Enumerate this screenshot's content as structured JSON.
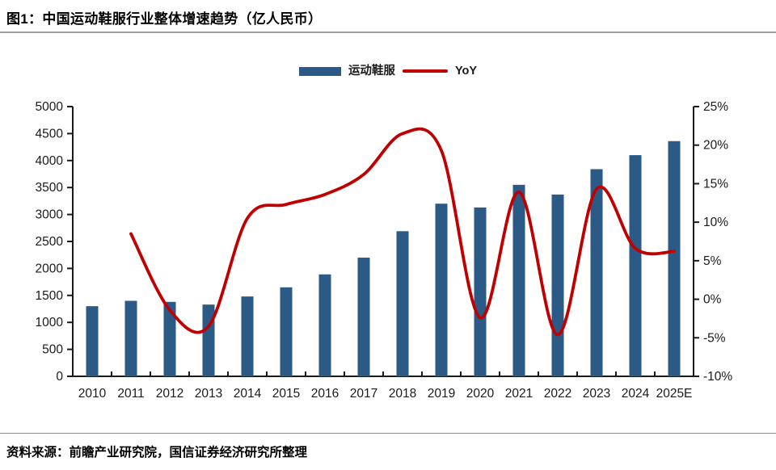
{
  "header": {
    "title": "图1：中国运动鞋服行业整体增速趋势（亿人民币）"
  },
  "legend": [
    {
      "label": "运动鞋服",
      "type": "bar",
      "color": "#2B5A87"
    },
    {
      "label": "YoY",
      "type": "line",
      "color": "#C00000"
    }
  ],
  "footer": {
    "source": "资料来源：前瞻产业研究院，国信证券经济研究所整理"
  },
  "colors": {
    "bar": "#2B5A87",
    "line": "#C00000",
    "axis": "#1a1a1a",
    "label": "#1a1a1a",
    "divider": "#9e9e9e"
  },
  "chart_data": {
    "type": "bar",
    "subtype": "bar+line-combo",
    "title": "中国运动鞋服行业整体增速趋势（亿人民币）",
    "categories": [
      "2010",
      "2011",
      "2012",
      "2013",
      "2014",
      "2015",
      "2016",
      "2017",
      "2018",
      "2019",
      "2020",
      "2021",
      "2022",
      "2023",
      "2024",
      "2025E"
    ],
    "series": [
      {
        "name": "运动鞋服",
        "type": "bar",
        "axis": "left",
        "color": "#2B5A87",
        "values": [
          1300,
          1400,
          1380,
          1330,
          1480,
          1650,
          1890,
          2200,
          2690,
          3200,
          3130,
          3550,
          3370,
          3840,
          4100,
          4360
        ]
      },
      {
        "name": "YoY",
        "type": "line",
        "axis": "right",
        "color": "#C00000",
        "unit": "%",
        "values": [
          null,
          8.5,
          -1.4,
          -3.5,
          10.5,
          12.3,
          13.6,
          16.2,
          21.5,
          19.3,
          -2.4,
          13.9,
          -4.6,
          14.3,
          6.6,
          6.2
        ]
      }
    ],
    "left_axis": {
      "min": 0,
      "max": 5000,
      "step": 500,
      "tick_labels": [
        "0",
        "500",
        "1000",
        "1500",
        "2000",
        "2500",
        "3000",
        "3500",
        "4000",
        "4500",
        "5000"
      ]
    },
    "right_axis": {
      "min": -10,
      "max": 25,
      "step": 5,
      "tick_labels": [
        "-10%",
        "-5%",
        "0%",
        "5%",
        "10%",
        "15%",
        "20%",
        "25%"
      ]
    },
    "grid": false,
    "legend_position": "top-center"
  }
}
